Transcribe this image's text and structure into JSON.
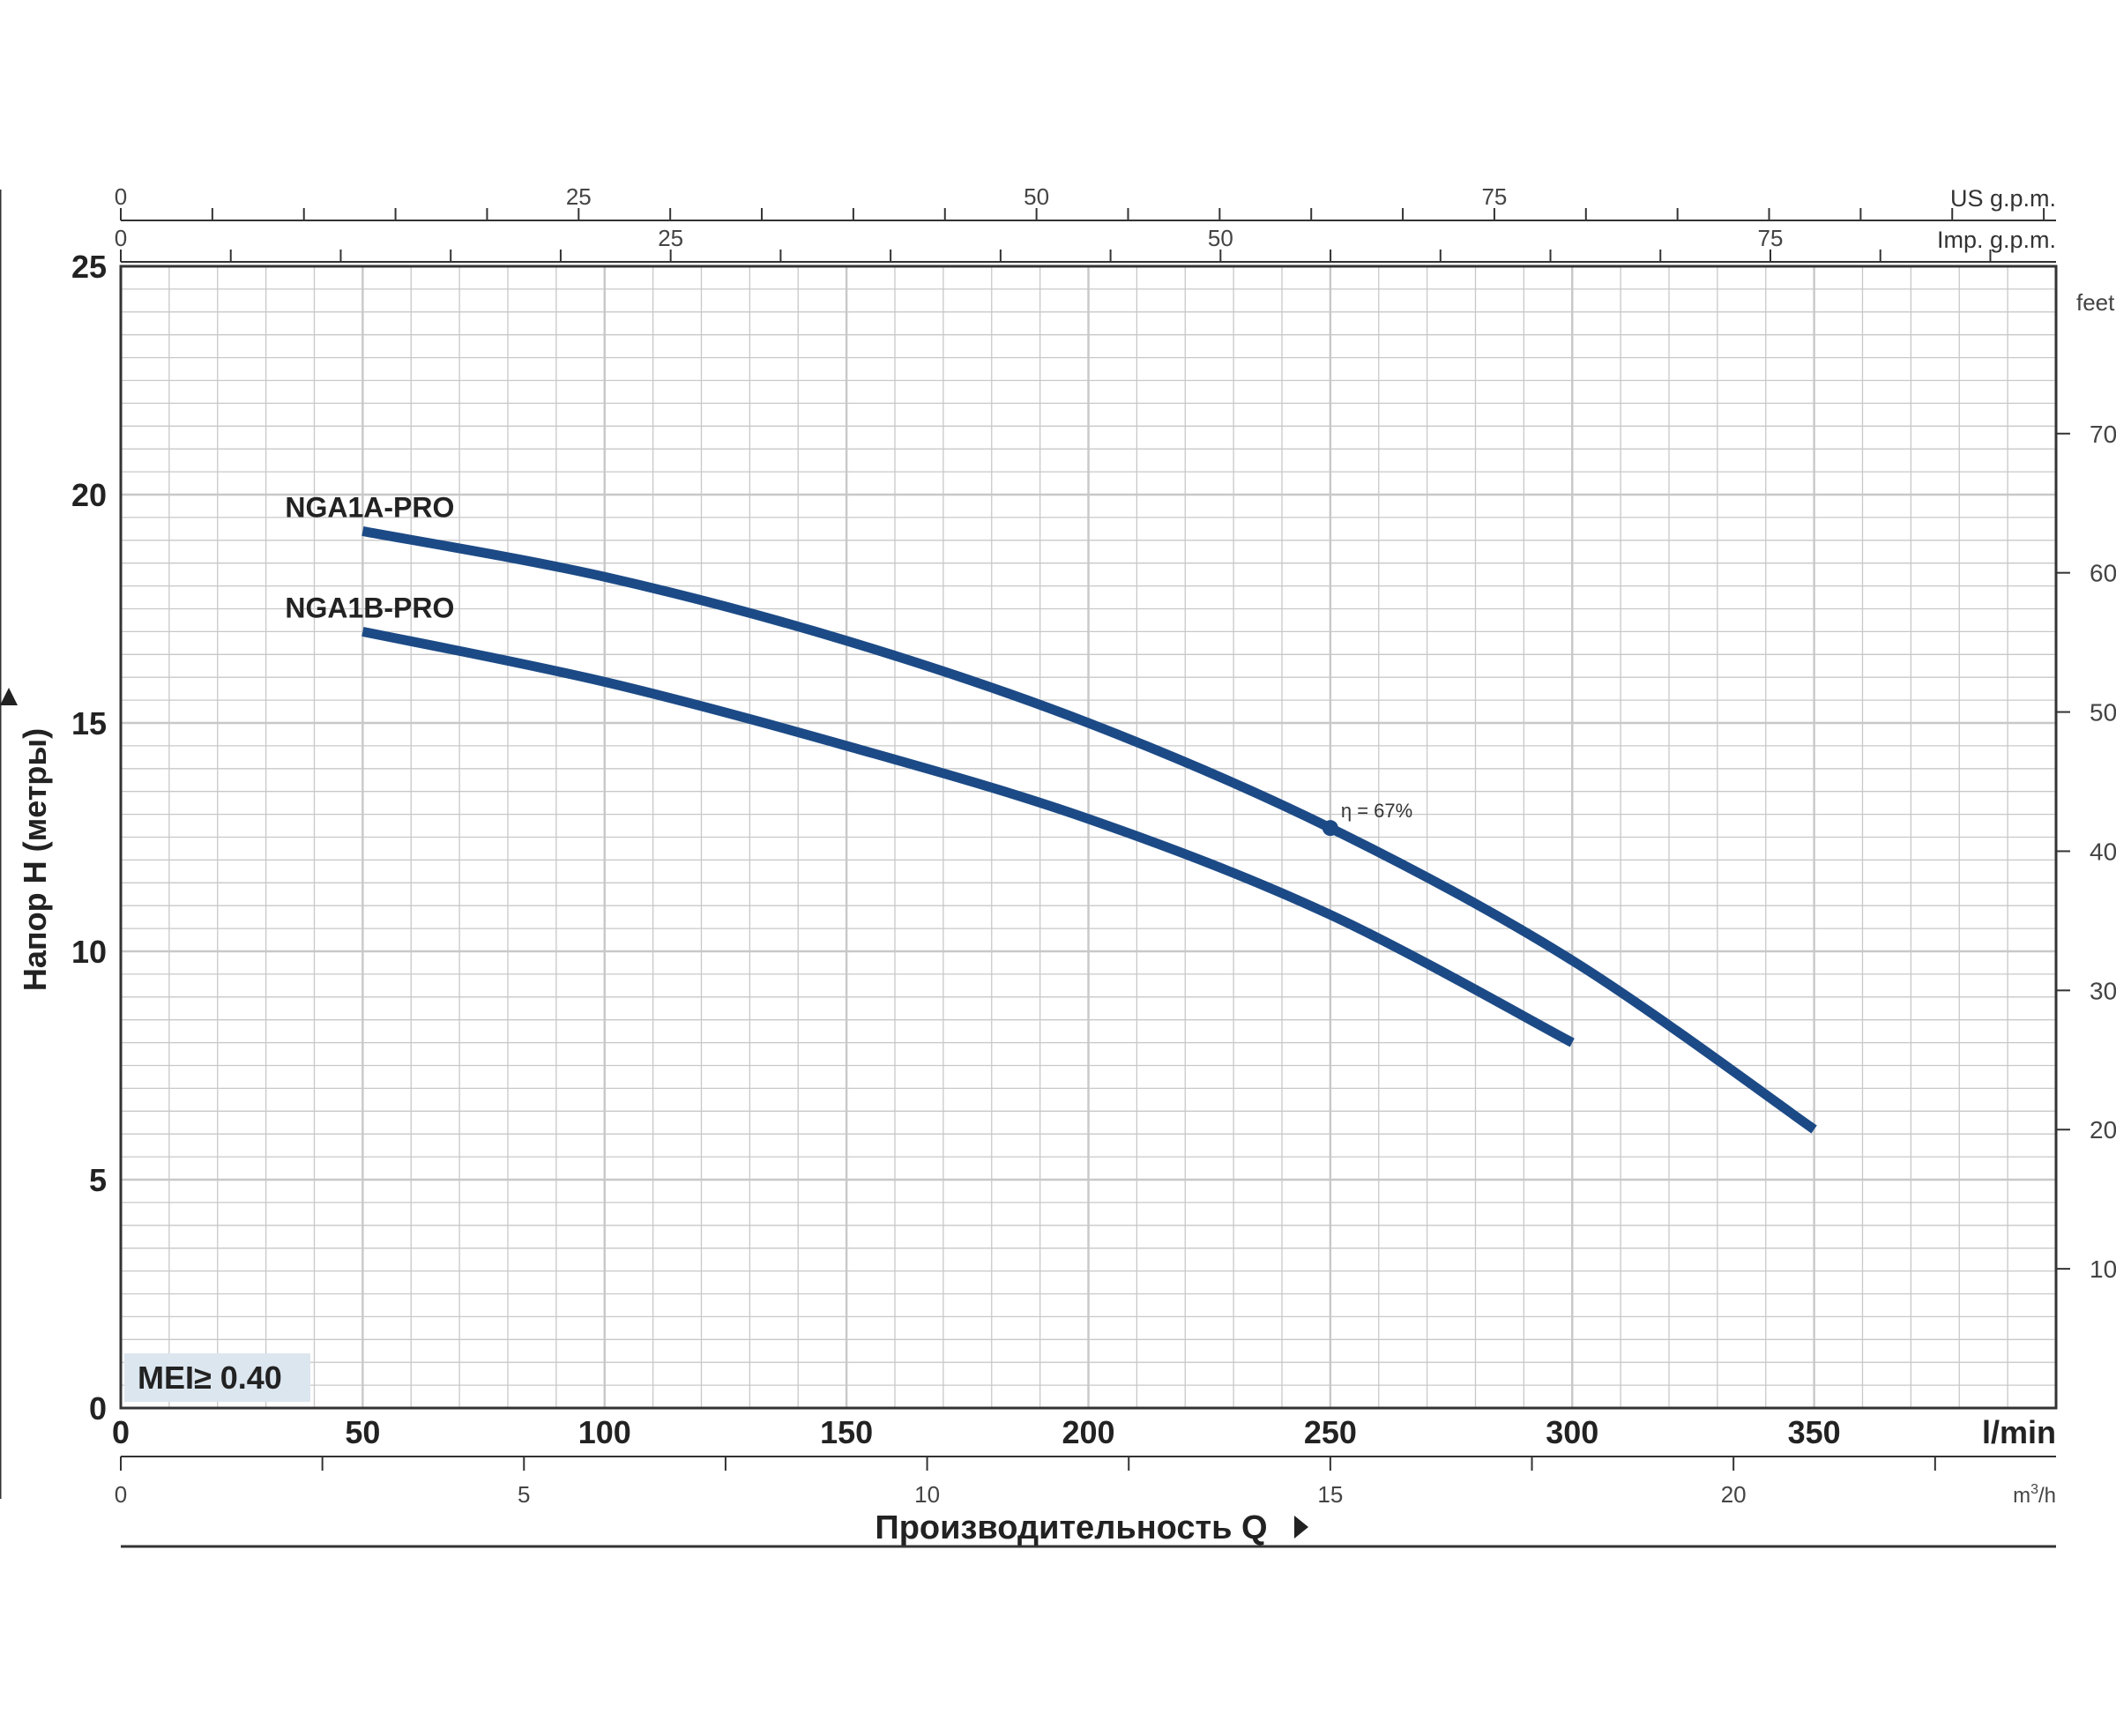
{
  "chart_data": {
    "type": "line",
    "x_unit_label": "l/min",
    "xlim": [
      0,
      400
    ],
    "x_ticks": [
      0,
      50,
      100,
      150,
      200,
      250,
      300,
      350
    ],
    "ylabel": "Напор Н (метры)",
    "ylim": [
      0,
      25
    ],
    "y_ticks": [
      0,
      5,
      10,
      15,
      20,
      25
    ],
    "xlabel": "Производительность Q",
    "secondary_axes": {
      "us_gpm": {
        "label": "US g.p.m.",
        "ticks": [
          0,
          25,
          50,
          75
        ]
      },
      "imp_gpm": {
        "label": "Imp. g.p.m.",
        "ticks": [
          0,
          25,
          50,
          75
        ]
      },
      "m3h": {
        "label_main": "m",
        "label_sup": "3",
        "label_tail": "/h",
        "ticks": [
          0,
          5,
          10,
          15,
          20
        ]
      },
      "feet": {
        "label": "feet",
        "ticks": [
          10,
          20,
          30,
          40,
          50,
          60,
          70
        ]
      }
    },
    "series": [
      {
        "name": "NGA1A-PRO",
        "color": "#1c4a86",
        "x": [
          50,
          100,
          150,
          200,
          250,
          300,
          350
        ],
        "y": [
          19.2,
          18.2,
          16.8,
          15.0,
          12.7,
          9.8,
          6.1
        ]
      },
      {
        "name": "NGA1B-PRO",
        "color": "#1c4a86",
        "x": [
          50,
          100,
          150,
          200,
          250,
          300
        ],
        "y": [
          17.0,
          15.9,
          14.5,
          12.9,
          10.8,
          8.0
        ]
      }
    ],
    "annotations": [
      {
        "text": "η = 67%",
        "x": 250,
        "y": 12.7
      }
    ],
    "badge": "MEI≥ 0.40",
    "grid": true,
    "colors": {
      "curve": "#1c4a86",
      "grid": "#c8c8c8",
      "axis": "#333333",
      "badge_bg": "#dce6ef"
    }
  }
}
